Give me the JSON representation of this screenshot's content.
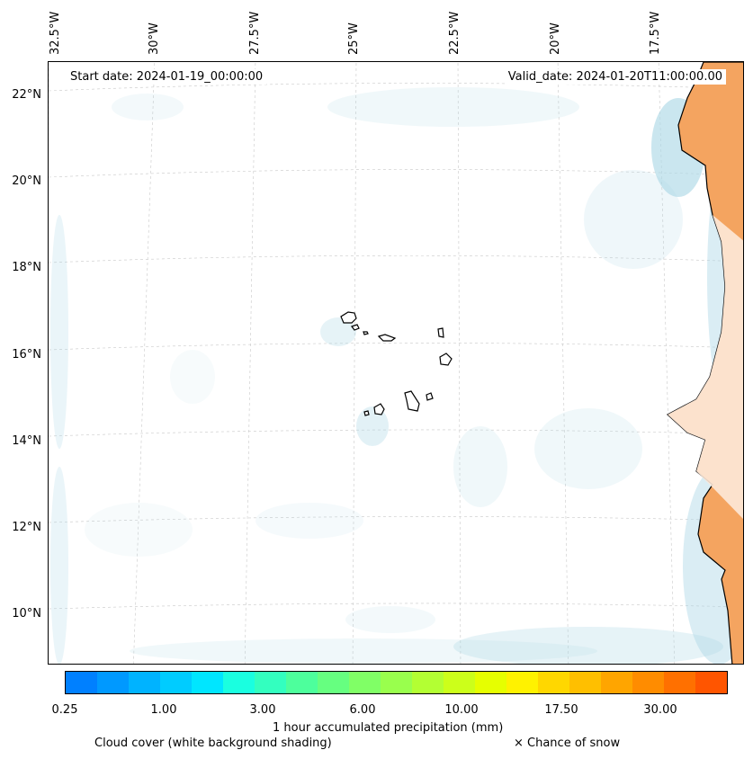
{
  "header": {
    "start_date": "Start date: 2024-01-19_00:00:00",
    "valid_date": "Valid_date: 2024-01-20T11:00:00.00"
  },
  "axes": {
    "longitude_labels": [
      "32.5°W",
      "30°W",
      "27.5°W",
      "25°W",
      "22.5°W",
      "20°W",
      "17.5°W"
    ],
    "latitude_labels": [
      "22°N",
      "20°N",
      "18°N",
      "16°N",
      "14°N",
      "12°N",
      "10°N"
    ]
  },
  "map": {
    "land_color": "#f4a460",
    "cloud_shading_color": "#add8e6",
    "gridlines": true,
    "features": [
      "Cape Verde islands",
      "West African coast"
    ]
  },
  "colorbar": {
    "title": "1 hour accumulated precipitation (mm)",
    "tick_labels": [
      "0.25",
      "1.00",
      "3.00",
      "6.00",
      "10.00",
      "17.50",
      "30.00"
    ],
    "colors": [
      "#0080ff",
      "#0099ff",
      "#00b3ff",
      "#00ccff",
      "#00e6ff",
      "#1affe0",
      "#33ffbf",
      "#4dff9c",
      "#66ff80",
      "#80ff66",
      "#99ff4d",
      "#b3ff33",
      "#ccff1a",
      "#e6ff00",
      "#fff200",
      "#ffd700",
      "#ffbf00",
      "#ffa500",
      "#ff8c00",
      "#ff7000",
      "#ff5500"
    ]
  },
  "legend": {
    "cloud_cover": "Cloud cover (white background shading)",
    "snow": "× Chance of snow"
  }
}
